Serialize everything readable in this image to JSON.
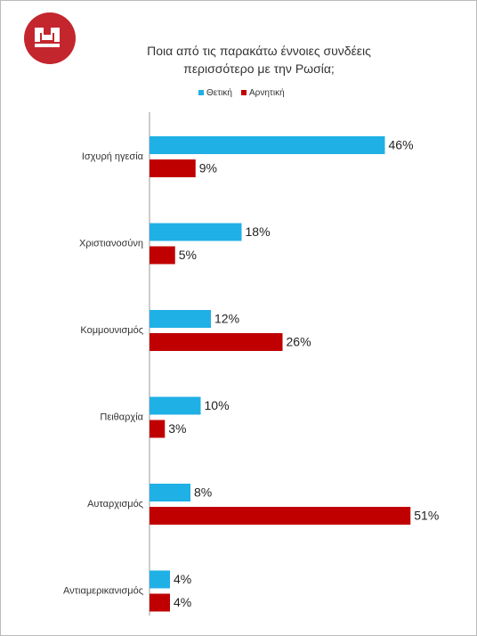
{
  "chart_data": {
    "type": "bar",
    "orientation": "horizontal",
    "title": "Ποια από τις παρακάτω έννοιες συνδέεις περισσότερο με την Ρωσία;",
    "categories": [
      "Ισχυρή ηγεσία",
      "Χριστιανοσύνη",
      "Κομμουνισμός",
      "Πειθαρχία",
      "Αυταρχισμός",
      "Αντιαμερικανισμός"
    ],
    "series": [
      {
        "name": "Θετική",
        "color": "#1fb0e6",
        "values": [
          46,
          18,
          12,
          10,
          8,
          4
        ],
        "value_labels": [
          "46%",
          "18%",
          "12%",
          "10%",
          "8%",
          "4%"
        ]
      },
      {
        "name": "Αρνητική",
        "color": "#c00000",
        "values": [
          9,
          5,
          26,
          3,
          51,
          4
        ],
        "value_labels": [
          "9%",
          "5%",
          "26%",
          "3%",
          "51%",
          "4%"
        ]
      }
    ]
  }
}
